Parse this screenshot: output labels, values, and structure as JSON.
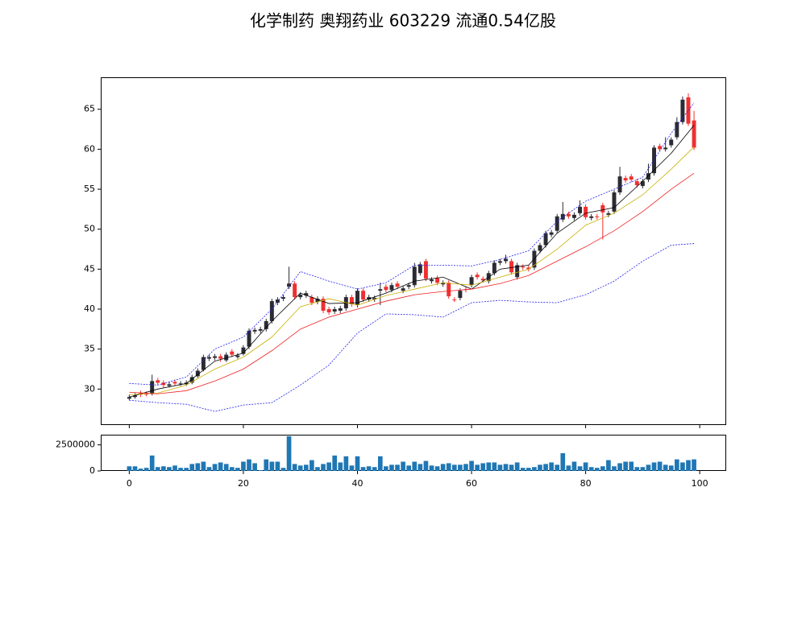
{
  "chart_data": [
    {
      "type": "candlestick",
      "title": "化学制药 奥翔药业 603229 流通0.54亿股",
      "xlim": [
        -5,
        104.5
      ],
      "ylim": [
        25.5,
        68.9
      ],
      "yticks": [
        30,
        35,
        40,
        45,
        50,
        55,
        60,
        65
      ],
      "up_color": "#2b2b33",
      "down_color": "#f03030",
      "x": [
        0,
        1,
        2,
        3,
        4,
        5,
        6,
        7,
        8,
        9,
        10,
        11,
        12,
        13,
        14,
        15,
        16,
        17,
        18,
        19,
        20,
        21,
        22,
        23,
        24,
        25,
        26,
        27,
        28,
        29,
        30,
        31,
        32,
        33,
        34,
        35,
        36,
        37,
        38,
        39,
        40,
        41,
        42,
        43,
        44,
        45,
        46,
        47,
        48,
        49,
        50,
        51,
        52,
        53,
        54,
        55,
        56,
        57,
        58,
        59,
        60,
        61,
        62,
        63,
        64,
        65,
        66,
        67,
        68,
        69,
        70,
        71,
        72,
        73,
        74,
        75,
        76,
        77,
        78,
        79,
        80,
        81,
        82,
        83,
        84,
        85,
        86,
        87,
        88,
        89,
        90,
        91,
        92,
        93,
        94,
        95,
        96,
        97,
        98,
        99
      ],
      "open": [
        28.8,
        29.0,
        29.5,
        29.4,
        29.4,
        31.1,
        30.8,
        30.4,
        30.9,
        30.6,
        30.6,
        30.8,
        31.6,
        32.4,
        33.8,
        33.9,
        34.1,
        33.6,
        34.7,
        34.0,
        34.4,
        35.3,
        37.2,
        37.3,
        37.5,
        38.5,
        40.8,
        41.3,
        42.8,
        43.2,
        41.5,
        41.7,
        41.5,
        40.9,
        41.3,
        40.0,
        39.7,
        39.8,
        40.1,
        41.5,
        40.5,
        42.3,
        41.2,
        41.2,
        42.3,
        42.8,
        42.4,
        43.2,
        42.3,
        42.8,
        43.0,
        44.5,
        46.0,
        43.5,
        43.9,
        43.1,
        43.3,
        41.2,
        41.4,
        42.5,
        43.0,
        44.3,
        43.8,
        43.5,
        44.5,
        45.8,
        46.0,
        46.0,
        44.0,
        45.3,
        45.2,
        45.2,
        47.3,
        48.0,
        49.3,
        49.8,
        51.2,
        51.9,
        51.4,
        52.0,
        52.8,
        51.4,
        51.6,
        53.0,
        51.8,
        52.2,
        54.6,
        56.4,
        56.6,
        56.0,
        55.4,
        56.2,
        57.0,
        60.4,
        60.0,
        60.5,
        61.5,
        63.4,
        66.5,
        63.6
      ],
      "high": [
        29.3,
        29.5,
        29.8,
        29.7,
        31.8,
        31.4,
        31.1,
        30.9,
        31.2,
        31.0,
        31.1,
        31.8,
        32.6,
        34.3,
        34.3,
        34.4,
        34.4,
        34.6,
        35.0,
        34.5,
        35.5,
        37.6,
        37.7,
        37.8,
        38.8,
        41.3,
        41.5,
        41.8,
        45.3,
        43.5,
        42.1,
        42.3,
        41.8,
        41.6,
        41.6,
        40.3,
        40.3,
        40.4,
        41.8,
        41.8,
        42.6,
        42.6,
        41.8,
        41.7,
        43.3,
        43.1,
        43.3,
        43.5,
        42.9,
        43.3,
        45.8,
        45.9,
        46.3,
        44.0,
        44.2,
        43.6,
        43.6,
        41.5,
        42.6,
        42.8,
        44.3,
        44.6,
        44.1,
        44.8,
        46.1,
        46.3,
        46.8,
        46.3,
        45.8,
        45.6,
        45.5,
        47.6,
        48.3,
        49.8,
        49.9,
        51.9,
        53.4,
        52.2,
        52.1,
        53.6,
        53.1,
        51.9,
        51.9,
        53.3,
        52.3,
        54.9,
        57.8,
        56.7,
        56.9,
        56.3,
        56.3,
        58.2,
        60.5,
        60.7,
        61.5,
        61.5,
        64.0,
        66.6,
        67.0,
        64.8
      ],
      "low": [
        28.6,
        28.8,
        29.0,
        29.1,
        29.2,
        30.5,
        30.2,
        30.2,
        30.4,
        30.4,
        30.4,
        30.6,
        31.4,
        32.2,
        33.5,
        33.6,
        33.4,
        33.4,
        34.0,
        33.8,
        34.2,
        35.0,
        36.9,
        37.0,
        37.2,
        38.2,
        40.5,
        41.0,
        42.5,
        41.2,
        41.2,
        41.4,
        40.5,
        40.6,
        39.5,
        39.3,
        39.4,
        39.5,
        39.8,
        40.3,
        40.2,
        40.9,
        40.9,
        40.9,
        40.5,
        42.1,
        42.1,
        42.5,
        42.0,
        42.5,
        42.7,
        44.2,
        43.5,
        43.2,
        43.0,
        42.8,
        41.3,
        40.9,
        41.1,
        42.1,
        42.7,
        43.7,
        43.3,
        43.2,
        44.2,
        45.5,
        45.7,
        44.3,
        43.7,
        44.9,
        44.7,
        44.9,
        47.0,
        47.7,
        49.0,
        49.5,
        50.9,
        51.3,
        51.1,
        51.7,
        51.2,
        51.1,
        51.2,
        48.7,
        51.5,
        51.9,
        54.3,
        55.8,
        55.9,
        55.2,
        55.1,
        55.9,
        56.7,
        59.7,
        59.7,
        60.2,
        61.2,
        63.1,
        62.9,
        59.9
      ],
      "close": [
        29.0,
        29.2,
        29.3,
        29.3,
        31.0,
        30.8,
        30.5,
        30.6,
        30.7,
        30.7,
        30.8,
        31.5,
        32.3,
        34.0,
        34.0,
        34.1,
        33.8,
        34.3,
        34.3,
        34.2,
        35.2,
        37.3,
        37.4,
        37.5,
        38.5,
        41.0,
        41.2,
        41.5,
        43.2,
        41.5,
        41.8,
        42.0,
        40.8,
        41.3,
        39.8,
        39.6,
        40.0,
        40.1,
        41.5,
        40.6,
        42.3,
        41.2,
        41.5,
        41.4,
        42.5,
        42.4,
        43.0,
        42.8,
        42.6,
        43.0,
        45.3,
        45.6,
        43.8,
        43.7,
        43.3,
        43.3,
        41.6,
        41.1,
        42.3,
        42.4,
        44.0,
        44.0,
        43.6,
        44.5,
        45.8,
        46.0,
        46.3,
        44.6,
        45.5,
        45.2,
        45.0,
        47.3,
        48.0,
        49.5,
        49.6,
        51.6,
        51.9,
        51.6,
        51.8,
        52.8,
        51.5,
        51.6,
        51.5,
        52.1,
        52.0,
        54.6,
        56.6,
        56.1,
        56.2,
        55.5,
        56.0,
        57.0,
        60.2,
        60.0,
        60.2,
        61.2,
        63.4,
        66.2,
        63.2,
        60.2
      ],
      "lines": [
        {
          "color": "#000000",
          "dash": false,
          "x": [
            0,
            5,
            10,
            15,
            20,
            25,
            30,
            35,
            40,
            45,
            50,
            55,
            60,
            65,
            70,
            75,
            80,
            85,
            90,
            95,
            99
          ],
          "values": [
            29.0,
            30.0,
            30.7,
            33.5,
            34.5,
            38.5,
            42.0,
            40.7,
            40.8,
            42.0,
            43.5,
            44.0,
            42.5,
            45.0,
            45.5,
            49.5,
            52.0,
            52.7,
            56.0,
            59.5,
            63.0
          ]
        },
        {
          "color": "#c8b000",
          "dash": false,
          "x": [
            0,
            5,
            10,
            15,
            20,
            25,
            30,
            35,
            40,
            45,
            50,
            55,
            60,
            65,
            70,
            75,
            80,
            85,
            90,
            95,
            99
          ],
          "values": [
            29.3,
            29.5,
            30.5,
            32.5,
            34.0,
            36.5,
            40.3,
            41.3,
            40.5,
            41.7,
            42.5,
            43.3,
            43.0,
            44.0,
            45.0,
            47.5,
            50.5,
            52.0,
            54.3,
            57.5,
            60.3
          ]
        },
        {
          "color": "#ee2020",
          "dash": false,
          "x": [
            0,
            5,
            10,
            15,
            20,
            25,
            30,
            35,
            40,
            45,
            50,
            55,
            60,
            65,
            70,
            75,
            80,
            85,
            90,
            95,
            99
          ],
          "values": [
            29.6,
            29.4,
            29.8,
            31.0,
            32.5,
            34.8,
            37.5,
            39.0,
            40.0,
            41.0,
            41.8,
            42.2,
            42.5,
            43.2,
            44.2,
            46.0,
            47.8,
            49.8,
            52.2,
            55.0,
            57.0
          ]
        },
        {
          "color": "#2020ee",
          "dash": true,
          "x": [
            0,
            5,
            10,
            15,
            20,
            25,
            30,
            35,
            40,
            45,
            50,
            55,
            60,
            65,
            70,
            75,
            80,
            85,
            90,
            95,
            99
          ],
          "values": [
            30.7,
            30.5,
            31.5,
            35.0,
            36.5,
            40.0,
            44.7,
            43.5,
            42.5,
            43.3,
            45.5,
            45.5,
            45.4,
            46.2,
            47.3,
            51.0,
            53.5,
            55.0,
            56.5,
            62.0,
            65.8
          ]
        },
        {
          "color": "#2020ee",
          "dash": true,
          "x": [
            0,
            5,
            10,
            15,
            20,
            25,
            30,
            35,
            40,
            45,
            50,
            55,
            60,
            65,
            70,
            75,
            80,
            85,
            90,
            95,
            99
          ],
          "values": [
            28.6,
            28.3,
            28.1,
            27.2,
            28.0,
            28.3,
            30.5,
            33.0,
            37.0,
            39.4,
            39.3,
            39.0,
            40.8,
            41.1,
            40.9,
            40.8,
            41.8,
            43.5,
            46.0,
            48.0,
            48.2
          ]
        }
      ]
    },
    {
      "type": "bar",
      "color": "#1f77b4",
      "xlim": [
        -5,
        104.5
      ],
      "ylim": [
        0,
        3400000
      ],
      "yticks": [
        0,
        2500000
      ],
      "xticks": [
        0,
        20,
        40,
        60,
        80,
        100
      ],
      "x": [
        0,
        1,
        2,
        3,
        4,
        5,
        6,
        7,
        8,
        9,
        10,
        11,
        12,
        13,
        14,
        15,
        16,
        17,
        18,
        19,
        20,
        21,
        22,
        23,
        24,
        25,
        26,
        27,
        28,
        29,
        30,
        31,
        32,
        33,
        34,
        35,
        36,
        37,
        38,
        39,
        40,
        41,
        42,
        43,
        44,
        45,
        46,
        47,
        48,
        49,
        50,
        51,
        52,
        53,
        54,
        55,
        56,
        57,
        58,
        59,
        60,
        61,
        62,
        63,
        64,
        65,
        66,
        67,
        68,
        69,
        70,
        71,
        72,
        73,
        74,
        75,
        76,
        77,
        78,
        79,
        80,
        81,
        82,
        83,
        84,
        85,
        86,
        87,
        88,
        89,
        90,
        91,
        92,
        93,
        94,
        95,
        96,
        97,
        98,
        99
      ],
      "values": [
        444000,
        444000,
        222000,
        296000,
        1480000,
        370000,
        444000,
        370000,
        518000,
        296000,
        296000,
        666000,
        740000,
        888000,
        370000,
        666000,
        814000,
        666000,
        370000,
        296000,
        888000,
        1110000,
        740000,
        74000,
        1110000,
        888000,
        888000,
        296000,
        3330000,
        666000,
        518000,
        592000,
        1036000,
        370000,
        666000,
        814000,
        1480000,
        814000,
        1406000,
        518000,
        1406000,
        370000,
        444000,
        370000,
        1406000,
        444000,
        592000,
        592000,
        888000,
        518000,
        888000,
        666000,
        962000,
        518000,
        444000,
        666000,
        740000,
        592000,
        592000,
        666000,
        962000,
        592000,
        740000,
        814000,
        814000,
        592000,
        666000,
        592000,
        814000,
        296000,
        296000,
        370000,
        592000,
        666000,
        814000,
        592000,
        1702000,
        518000,
        888000,
        444000,
        814000,
        370000,
        296000,
        444000,
        1036000,
        444000,
        740000,
        888000,
        888000,
        370000,
        370000,
        592000,
        814000,
        888000,
        592000,
        518000,
        1110000,
        814000,
        1036000,
        1110000
      ]
    }
  ]
}
